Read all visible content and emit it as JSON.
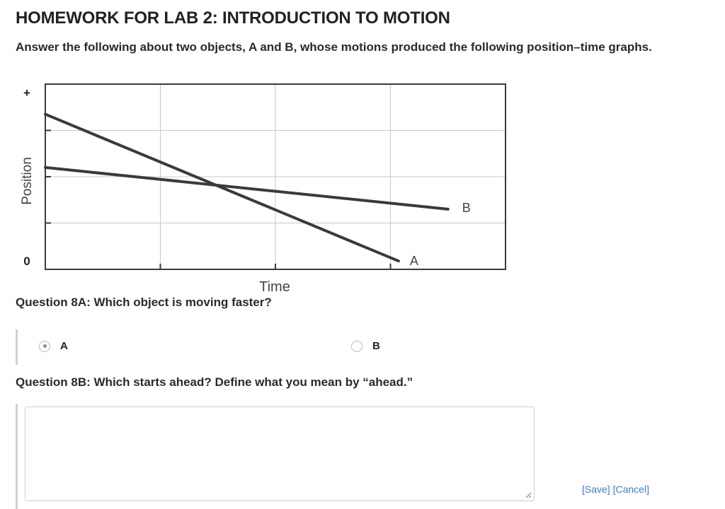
{
  "page": {
    "title": "HOMEWORK FOR LAB 2: INTRODUCTION TO MOTION",
    "intro": "Answer the following about two objects, A and B, whose motions produced the following position–time graphs."
  },
  "graph": {
    "y_axis_label": "Position",
    "y_top_label": "+",
    "y_zero_label": "0",
    "x_axis_label": "Time",
    "line_a_label": "A",
    "line_b_label": "B"
  },
  "chart_data": {
    "type": "line",
    "xlabel": "Time",
    "ylabel": "Position",
    "xlim": [
      0,
      4
    ],
    "ylim": [
      0,
      4
    ],
    "grid": true,
    "series": [
      {
        "name": "A",
        "x": [
          0,
          3.07
        ],
        "y": [
          3.35,
          0.18
        ]
      },
      {
        "name": "B",
        "x": [
          0,
          3.5
        ],
        "y": [
          2.2,
          1.3
        ]
      }
    ]
  },
  "question_8a": {
    "text": "Question 8A: Which object is moving faster?",
    "options": [
      {
        "label": "A",
        "selected": true
      },
      {
        "label": "B",
        "selected": false
      }
    ]
  },
  "question_8b": {
    "text": "Question 8B: Which starts ahead? Define what you mean by “ahead.”",
    "answer_value": ""
  },
  "actions": {
    "save_label": "[Save]",
    "cancel_label": "[Cancel]"
  },
  "colors": {
    "accent_link": "#3c7dd1",
    "graph_line": "#3a3a3a",
    "grid": "#c8c8c8"
  }
}
